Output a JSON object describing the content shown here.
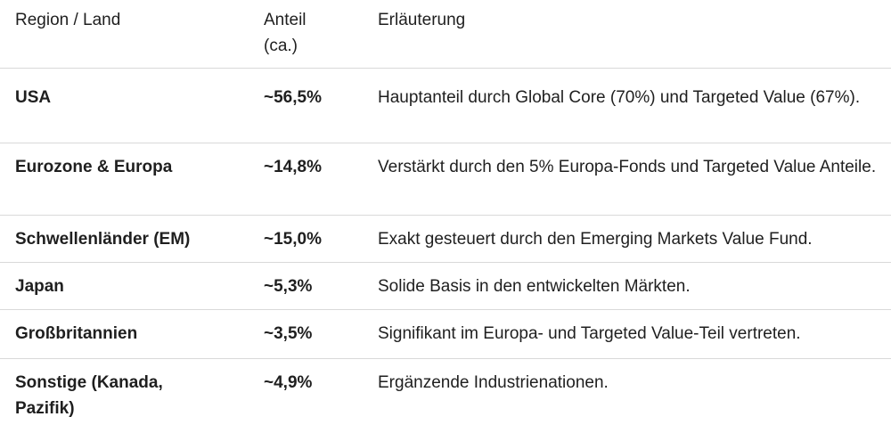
{
  "header": {
    "region": "Region / Land",
    "share": "Anteil (ca.)",
    "note": "Erläuterung"
  },
  "rows": [
    {
      "region": "USA",
      "share": "~56,5%",
      "note": "Hauptanteil durch Global Core (70%) und Targeted Value (67%)."
    },
    {
      "region": "Eurozone & Europa",
      "share": "~14,8%",
      "note": "Verstärkt durch den 5% Europa-Fonds und Targeted Value Anteile."
    },
    {
      "region": "Schwellenländer (EM)",
      "share": "~15,0%",
      "note": "Exakt gesteuert durch den Emerging Markets Value Fund."
    },
    {
      "region": "Japan",
      "share": "~5,3%",
      "note": "Solide Basis in den entwickelten Märkten."
    },
    {
      "region": "Großbritannien",
      "share": "~3,5%",
      "note": "Signifikant im Europa- und Targeted Value-Teil vertreten."
    },
    {
      "region": "Sonstige (Kanada, Pazifik)",
      "share": "~4,9%",
      "note": "Ergänzende Industrienationen."
    }
  ]
}
